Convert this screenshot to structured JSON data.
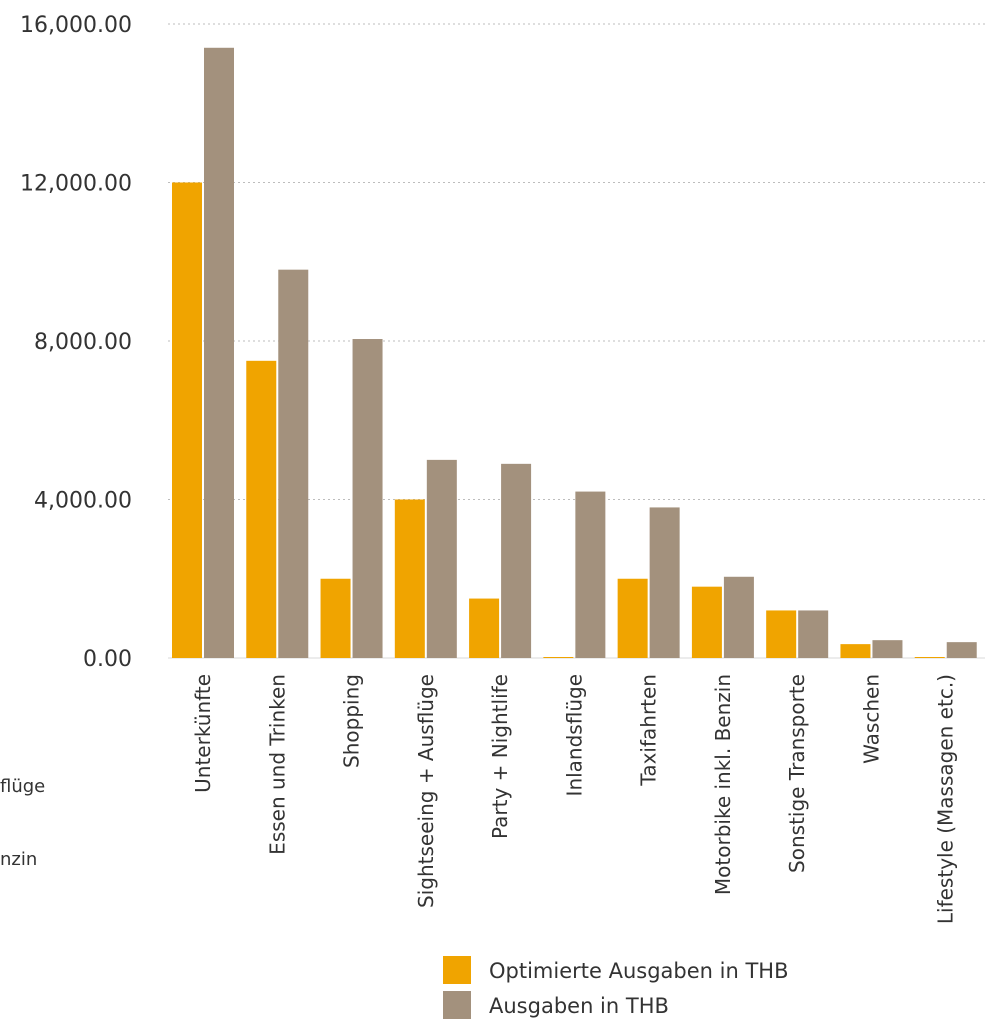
{
  "chart_data": {
    "type": "bar",
    "categories": [
      "Unterkünfte",
      "Essen und Trinken",
      "Shopping",
      "Sightseeing + Ausflüge",
      "Party + Nightlife",
      "Inlandsflüge",
      "Taxifahrten",
      "Motorbike inkl. Benzin",
      "Sonstige Transporte",
      "Waschen",
      "Lifestyle (Massagen etc.)"
    ],
    "series": [
      {
        "name": "Optimierte Ausgaben in THB",
        "color": "#F0A400",
        "values": [
          12000,
          7500,
          2000,
          4000,
          1500,
          0,
          2000,
          1800,
          1200,
          350,
          0
        ]
      },
      {
        "name": "Ausgaben in  THB",
        "color": "#A3917D",
        "values": [
          15400,
          9800,
          8050,
          5000,
          4900,
          4200,
          3800,
          2050,
          1200,
          450,
          400
        ]
      }
    ],
    "y_ticks": [
      "0.00",
      "4,000.00",
      "8,000.00",
      "12,000.00",
      "16,000.00"
    ],
    "ylim": [
      0,
      16000
    ],
    "grid": true,
    "legend_position": "bottom"
  },
  "clipped_labels": [
    "flüge",
    "nzin"
  ]
}
